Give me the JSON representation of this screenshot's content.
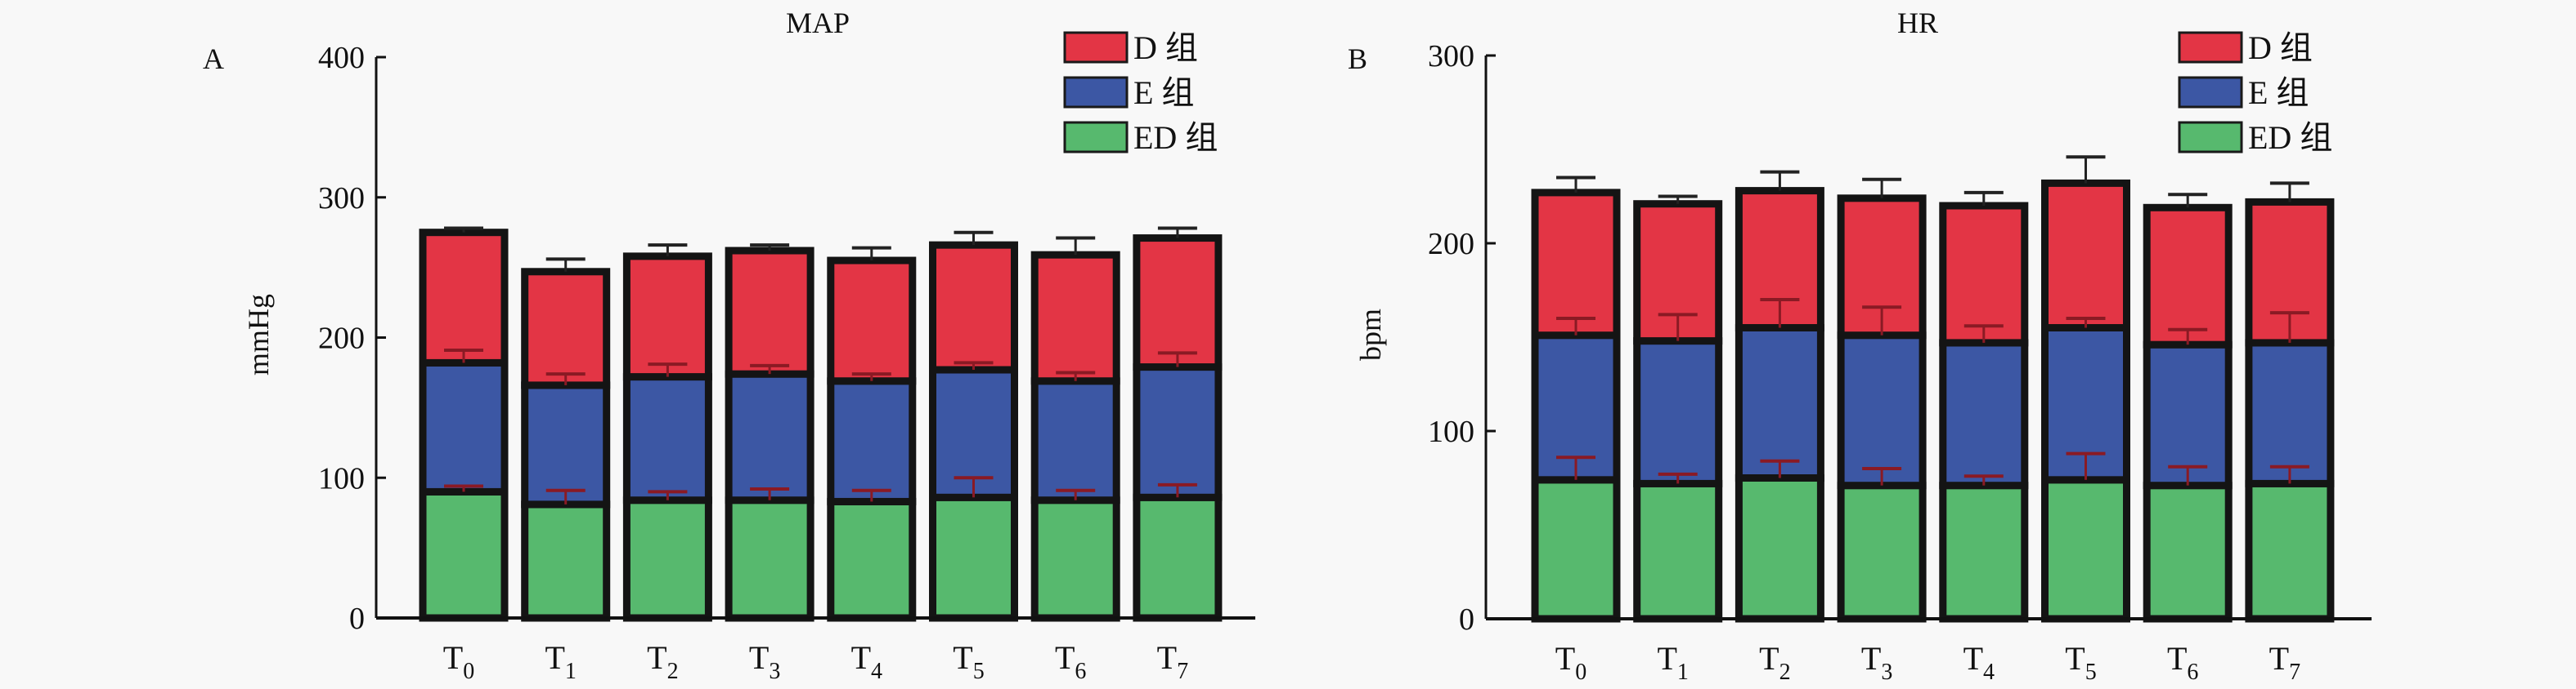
{
  "chart_data": [
    {
      "type": "bar",
      "stacked": true,
      "panel_label": "A",
      "title": "MAP",
      "xlabel": "",
      "ylabel": "mmHg",
      "ylim": [
        0,
        400
      ],
      "yticks": [
        0,
        100,
        200,
        300,
        400
      ],
      "grid": false,
      "legend_position": "top-right",
      "categories": [
        {
          "base": "T",
          "sub": "0"
        },
        {
          "base": "T",
          "sub": "1"
        },
        {
          "base": "T",
          "sub": "2"
        },
        {
          "base": "T",
          "sub": "3"
        },
        {
          "base": "T",
          "sub": "4"
        },
        {
          "base": "T",
          "sub": "5"
        },
        {
          "base": "T",
          "sub": "6"
        },
        {
          "base": "T",
          "sub": "7"
        }
      ],
      "series": [
        {
          "name": "ED 组",
          "color": "#57b96e",
          "values": [
            90,
            81,
            84,
            84,
            83,
            86,
            84,
            86
          ],
          "errors": [
            4,
            10,
            6,
            8,
            8,
            14,
            7,
            9
          ]
        },
        {
          "name": "E 组",
          "color": "#3c57a4",
          "values": [
            92,
            85,
            88,
            90,
            86,
            91,
            85,
            93
          ],
          "errors": [
            9,
            8,
            9,
            6,
            5,
            5,
            6,
            10
          ]
        },
        {
          "name": "D 组",
          "color": "#e33545",
          "values": [
            93,
            81,
            86,
            88,
            86,
            89,
            90,
            92
          ],
          "errors": [
            3,
            9,
            8,
            4,
            9,
            9,
            12,
            7
          ]
        }
      ]
    },
    {
      "type": "bar",
      "stacked": true,
      "panel_label": "B",
      "title": "HR",
      "xlabel": "",
      "ylabel": "bpm",
      "ylim": [
        0,
        300
      ],
      "yticks": [
        0,
        100,
        200,
        300
      ],
      "grid": false,
      "legend_position": "top-right",
      "categories": [
        {
          "base": "T",
          "sub": "0"
        },
        {
          "base": "T",
          "sub": "1"
        },
        {
          "base": "T",
          "sub": "2"
        },
        {
          "base": "T",
          "sub": "3"
        },
        {
          "base": "T",
          "sub": "4"
        },
        {
          "base": "T",
          "sub": "5"
        },
        {
          "base": "T",
          "sub": "6"
        },
        {
          "base": "T",
          "sub": "7"
        }
      ],
      "series": [
        {
          "name": "ED 组",
          "color": "#57b96e",
          "values": [
            74,
            72,
            75,
            71,
            71,
            74,
            71,
            72
          ],
          "errors": [
            12,
            5,
            9,
            9,
            5,
            14,
            10,
            9
          ]
        },
        {
          "name": "E 组",
          "color": "#3c57a4",
          "values": [
            77,
            76,
            80,
            80,
            76,
            81,
            75,
            75
          ],
          "errors": [
            9,
            14,
            15,
            15,
            9,
            5,
            8,
            16
          ]
        },
        {
          "name": "D 组",
          "color": "#e33545",
          "values": [
            76,
            73,
            73,
            73,
            73,
            77,
            73,
            75
          ],
          "errors": [
            8,
            4,
            10,
            10,
            7,
            14,
            7,
            10
          ]
        }
      ]
    }
  ]
}
